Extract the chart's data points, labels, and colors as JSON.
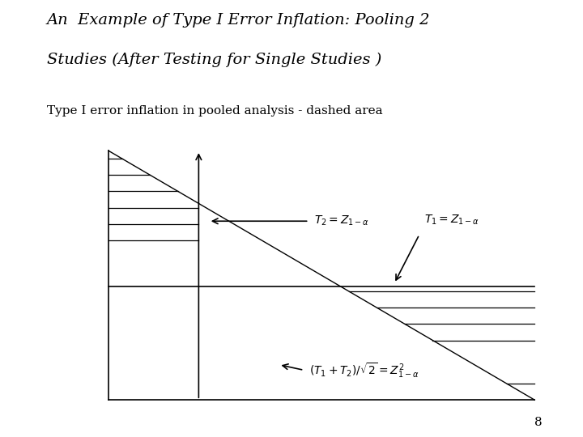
{
  "title_line1": "An  Example of Type I Error Inflation: Pooling 2",
  "title_line2": "Studies (After Testing for Single Studies )",
  "subtitle": "Type I error inflation in pooled analysis - dashed area",
  "background_color": "#ffffff",
  "title_fontsize": 14,
  "subtitle_fontsize": 11,
  "page_number": "8",
  "t2_label": "$T_2 = Z_{1-\\alpha}$",
  "t1_label": "$T_1 = Z_{1-\\alpha}$",
  "bottom_label": "$(T_1 + T_2)/\\sqrt{2} = Z_{1-\\alpha}^{2}$"
}
